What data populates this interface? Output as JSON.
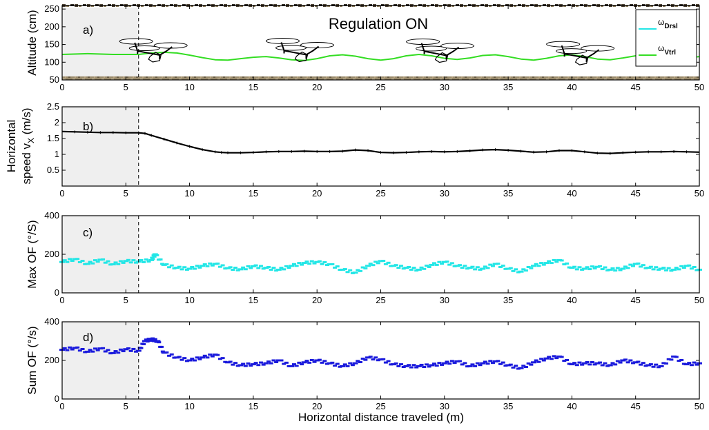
{
  "title": "Regulation ON",
  "xlabel": "Horizontal distance traveled (m)",
  "x_ticks": [
    "0",
    "5",
    "10",
    "15",
    "20",
    "25",
    "30",
    "35",
    "40",
    "45",
    "50"
  ],
  "colors": {
    "cyan": "#22e6e6",
    "green": "#33dd22",
    "blue": "#1a1adc",
    "black": "#000000",
    "shade": "#efefef"
  },
  "icons": [
    "quadrotor-drone-icon",
    "terrain-texture-strip",
    "forest-canopy-strip"
  ],
  "chart_data": [
    {
      "id": "a",
      "type": "line",
      "panel_label": "a)",
      "title": "Regulation ON",
      "ylabel": "Altitude (cm)",
      "xlim": [
        0,
        50
      ],
      "ylim": [
        50,
        260
      ],
      "y_ticks": [
        "250",
        "200",
        "150",
        "100",
        "50"
      ],
      "legend": {
        "position": "top-right",
        "entries": [
          {
            "symbol": "ω",
            "sub": "Drsl",
            "color": "#22e6e6"
          },
          {
            "symbol": "ω",
            "sub": "Vtrl",
            "color": "#33dd22"
          }
        ]
      },
      "drone_positions_m": [
        7,
        18.5,
        29.5,
        40.5
      ],
      "series": [
        {
          "color": "#33dd22",
          "x": [
            0,
            2,
            4,
            6,
            7,
            8,
            9,
            10,
            11,
            12,
            13,
            14,
            15,
            16,
            17,
            18,
            19,
            20,
            21,
            22,
            23,
            24,
            25,
            26,
            27,
            28,
            29,
            30,
            31,
            32,
            33,
            34,
            35,
            36,
            37,
            38,
            39,
            40,
            41,
            42,
            43,
            44,
            45,
            46,
            47,
            48,
            49,
            50
          ],
          "y": [
            122,
            124,
            122,
            122,
            126,
            128,
            126,
            120,
            113,
            107,
            106,
            110,
            114,
            116,
            112,
            107,
            105,
            110,
            118,
            121,
            117,
            110,
            106,
            110,
            118,
            122,
            118,
            111,
            108,
            112,
            119,
            121,
            116,
            109,
            106,
            111,
            118,
            121,
            116,
            109,
            107,
            112,
            118,
            120,
            115,
            110,
            112,
            116
          ]
        }
      ]
    },
    {
      "id": "b",
      "type": "line",
      "panel_label": "b)",
      "ylabel": "Horizontal speed v",
      "ylabel_sub": "X",
      "ylabel_unit": "(m/s)",
      "xlim": [
        0,
        50
      ],
      "ylim": [
        0,
        2.5
      ],
      "y_ticks": [
        "2.5",
        "2",
        "1.5",
        "1",
        "0.5"
      ],
      "series": [
        {
          "color": "#000000",
          "x": [
            0,
            1,
            2,
            3,
            4,
            5,
            6,
            6.5,
            7,
            8,
            9,
            10,
            11,
            12,
            12.5,
            13,
            14,
            15,
            16,
            17,
            18,
            19,
            20,
            21,
            22,
            23,
            24,
            25,
            26,
            27,
            28,
            29,
            30,
            31,
            32,
            33,
            34,
            35,
            36,
            37,
            38,
            39,
            40,
            41,
            42,
            43,
            44,
            45,
            46,
            47,
            48,
            49,
            50
          ],
          "y": [
            1.72,
            1.71,
            1.7,
            1.69,
            1.69,
            1.68,
            1.68,
            1.66,
            1.6,
            1.48,
            1.36,
            1.25,
            1.15,
            1.08,
            1.06,
            1.05,
            1.05,
            1.06,
            1.08,
            1.09,
            1.09,
            1.1,
            1.09,
            1.09,
            1.1,
            1.14,
            1.12,
            1.06,
            1.05,
            1.06,
            1.08,
            1.09,
            1.08,
            1.09,
            1.11,
            1.14,
            1.15,
            1.13,
            1.1,
            1.07,
            1.08,
            1.12,
            1.12,
            1.08,
            1.04,
            1.03,
            1.05,
            1.07,
            1.08,
            1.08,
            1.09,
            1.08,
            1.07
          ]
        }
      ]
    },
    {
      "id": "c",
      "type": "scatter",
      "panel_label": "c)",
      "ylabel": "Max OF (°/S)",
      "xlim": [
        0,
        50
      ],
      "ylim": [
        0,
        400
      ],
      "y_ticks": [
        "400",
        "200",
        "0"
      ],
      "series": [
        {
          "color": "#22e6e6",
          "x": [
            0,
            1,
            2,
            3,
            4,
            5,
            6,
            7,
            7.3,
            8,
            9,
            10,
            11,
            12,
            13,
            14,
            15,
            16,
            17,
            18,
            19,
            20,
            21,
            22,
            23,
            24,
            25,
            26,
            27,
            28,
            29,
            30,
            31,
            32,
            33,
            34,
            35,
            36,
            37,
            38,
            39,
            40,
            41,
            42,
            43,
            44,
            45,
            46,
            47,
            48,
            49,
            50
          ],
          "y": [
            160,
            175,
            150,
            172,
            148,
            165,
            162,
            170,
            200,
            145,
            130,
            125,
            140,
            150,
            128,
            122,
            138,
            130,
            120,
            140,
            155,
            160,
            148,
            120,
            105,
            140,
            165,
            140,
            130,
            120,
            145,
            160,
            140,
            130,
            125,
            150,
            125,
            110,
            140,
            155,
            170,
            130,
            125,
            135,
            120,
            125,
            150,
            130,
            125,
            120,
            140,
            120
          ]
        }
      ]
    },
    {
      "id": "d",
      "type": "scatter",
      "panel_label": "d)",
      "ylabel": "Sum OF (°/s)",
      "xlim": [
        0,
        50
      ],
      "ylim": [
        0,
        400
      ],
      "y_ticks": [
        "400",
        "200",
        "0"
      ],
      "series": [
        {
          "color": "#1a1adc",
          "x": [
            0,
            1,
            2,
            3,
            4,
            5,
            6,
            6.5,
            7,
            7.5,
            8,
            9,
            10,
            11,
            12,
            13,
            14,
            15,
            16,
            17,
            18,
            19,
            20,
            21,
            22,
            23,
            24,
            25,
            26,
            27,
            28,
            29,
            30,
            31,
            32,
            33,
            34,
            35,
            36,
            37,
            38,
            39,
            40,
            41,
            42,
            43,
            44,
            45,
            46,
            47,
            48,
            49,
            50
          ],
          "y": [
            255,
            265,
            245,
            262,
            238,
            258,
            250,
            300,
            310,
            300,
            240,
            215,
            200,
            215,
            230,
            190,
            175,
            180,
            185,
            200,
            170,
            190,
            200,
            185,
            170,
            185,
            215,
            205,
            180,
            170,
            170,
            175,
            185,
            195,
            170,
            185,
            195,
            175,
            160,
            190,
            210,
            220,
            180,
            185,
            185,
            175,
            200,
            190,
            175,
            170,
            220,
            180,
            185
          ]
        }
      ]
    }
  ]
}
